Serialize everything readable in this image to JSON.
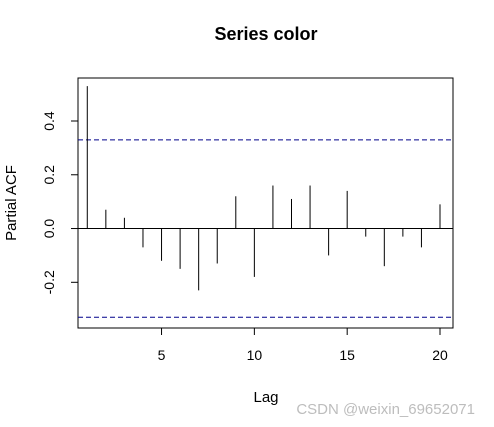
{
  "chart_data": {
    "type": "bar",
    "title": "Series  color",
    "xlabel": "Lag",
    "ylabel": "Partial ACF",
    "xlim": [
      0.5,
      20.7
    ],
    "ylim": [
      -0.37,
      0.56
    ],
    "x_ticks": [
      5,
      10,
      15,
      20
    ],
    "y_ticks": [
      -0.2,
      0.0,
      0.2,
      0.4
    ],
    "y_tick_labels": [
      "-0.2",
      "0.0",
      "0.2",
      "0.4"
    ],
    "x": [
      1,
      2,
      3,
      4,
      5,
      6,
      7,
      8,
      9,
      10,
      11,
      12,
      13,
      14,
      15,
      16,
      17,
      18,
      19,
      20
    ],
    "values": [
      0.53,
      0.07,
      0.04,
      -0.07,
      -0.12,
      -0.15,
      -0.23,
      -0.13,
      0.12,
      -0.18,
      0.16,
      0.11,
      0.16,
      -0.1,
      0.14,
      -0.03,
      -0.14,
      -0.03,
      -0.07,
      0.09
    ],
    "confidence_bounds": [
      0.33,
      -0.33
    ],
    "grid": false
  },
  "watermark": "CSDN @weixin_69652071",
  "colors": {
    "bounds": "#00008b",
    "marks": "#000000"
  }
}
